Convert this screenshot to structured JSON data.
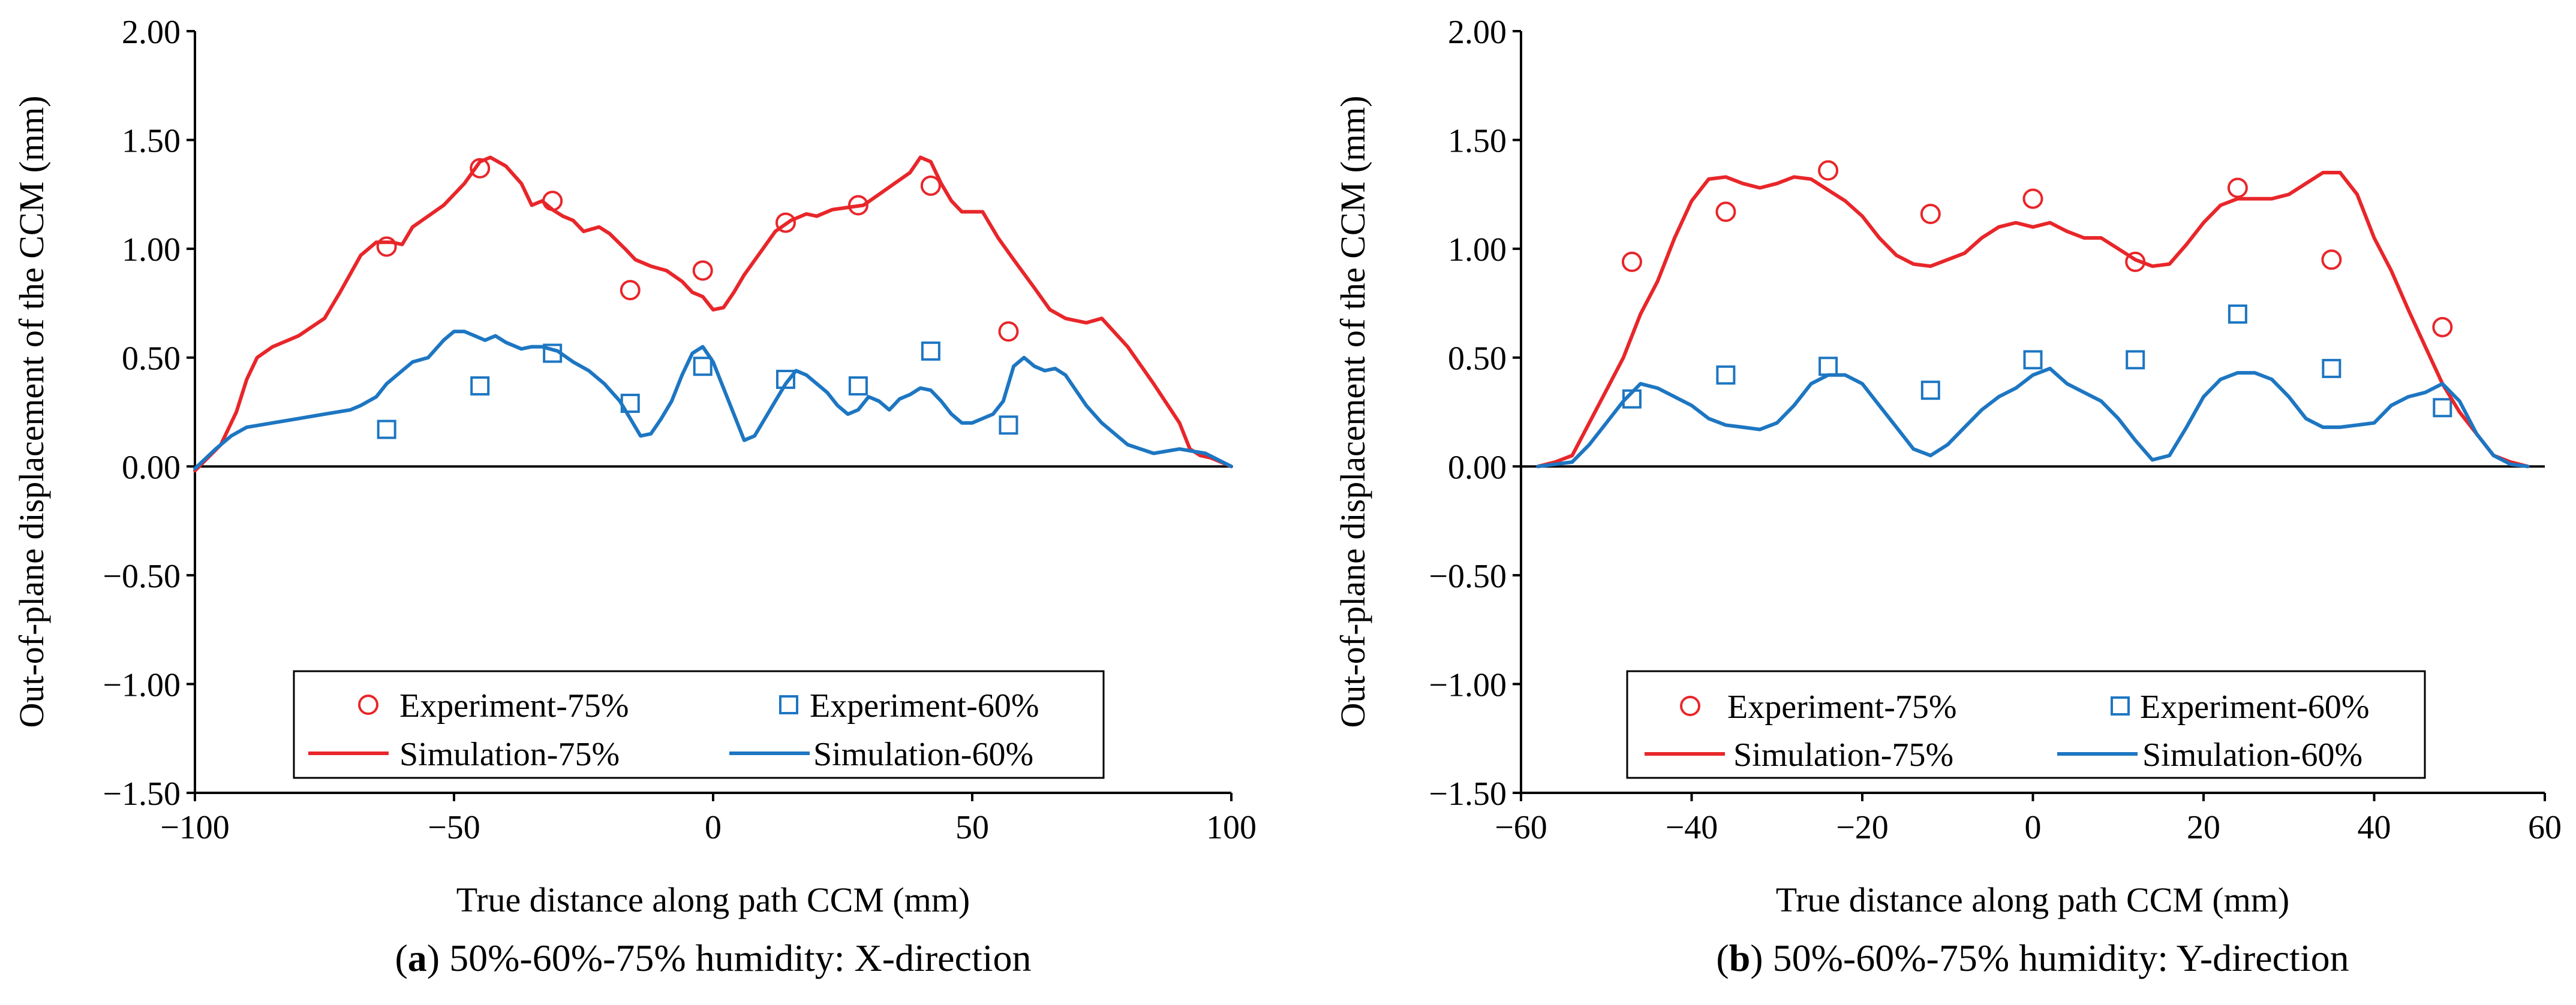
{
  "colors": {
    "red": "#e8262a",
    "blue": "#1d76c2",
    "axis": "#000000"
  },
  "chart_data": [
    {
      "id": "a",
      "type": "line",
      "panel_label": "a",
      "caption": "50%-60%-75% humidity: X-direction",
      "xlabel": "True distance along path CCM (mm)",
      "ylabel": "Out-of-plane displacement of the CCM (mm)",
      "xlim": [
        -100,
        100
      ],
      "ylim": [
        -1.5,
        2.0
      ],
      "xticks": [
        -100,
        -50,
        0,
        50,
        100
      ],
      "xtick_labels": [
        "−100",
        "−50",
        "0",
        "50",
        "100"
      ],
      "yticks": [
        -1.5,
        -1.0,
        -0.5,
        0.0,
        0.5,
        1.0,
        1.5,
        2.0
      ],
      "ytick_labels": [
        "−1.50",
        "−1.00",
        "−0.50",
        "0.00",
        "0.50",
        "1.00",
        "1.50",
        "2.00"
      ],
      "legend": {
        "exp75": "Experiment-75%",
        "exp60": "Experiment-60%",
        "sim75": "Simulation-75%",
        "sim60": "Simulation-60%"
      },
      "series": [
        {
          "name": "Experiment-75%",
          "kind": "scatter",
          "marker": "circle",
          "color": "#e8262a",
          "x": [
            -63,
            -45,
            -31,
            -16,
            -2,
            14,
            28,
            42,
            57
          ],
          "y": [
            1.01,
            1.37,
            1.22,
            0.81,
            0.9,
            1.12,
            1.2,
            1.29,
            0.62
          ]
        },
        {
          "name": "Experiment-60%",
          "kind": "scatter",
          "marker": "square",
          "color": "#1d76c2",
          "x": [
            -63,
            -45,
            -31,
            -16,
            -2,
            14,
            28,
            42,
            57
          ],
          "y": [
            0.17,
            0.37,
            0.52,
            0.29,
            0.46,
            0.4,
            0.37,
            0.53,
            0.19
          ]
        },
        {
          "name": "Simulation-75%",
          "kind": "line",
          "color": "#e8262a",
          "x": [
            -100,
            -95,
            -92,
            -90,
            -88,
            -85,
            -80,
            -75,
            -72,
            -68,
            -65,
            -62,
            -60,
            -58,
            -55,
            -52,
            -48,
            -45,
            -43,
            -40,
            -37,
            -35,
            -33,
            -31,
            -29,
            -27,
            -25,
            -22,
            -20,
            -17,
            -15,
            -12,
            -9,
            -6,
            -4,
            -2,
            0,
            2,
            4,
            6,
            9,
            12,
            15,
            18,
            20,
            23,
            26,
            29,
            32,
            35,
            38,
            40,
            42,
            44,
            46,
            48,
            52,
            55,
            58,
            62,
            65,
            68,
            70,
            72,
            75,
            80,
            85,
            90,
            92,
            94,
            96,
            98,
            100
          ],
          "y": [
            -0.02,
            0.1,
            0.25,
            0.4,
            0.5,
            0.55,
            0.6,
            0.68,
            0.8,
            0.97,
            1.03,
            1.03,
            1.02,
            1.1,
            1.15,
            1.2,
            1.3,
            1.4,
            1.42,
            1.38,
            1.3,
            1.2,
            1.22,
            1.18,
            1.15,
            1.13,
            1.08,
            1.1,
            1.07,
            1.0,
            0.95,
            0.92,
            0.9,
            0.85,
            0.8,
            0.78,
            0.72,
            0.73,
            0.8,
            0.88,
            0.98,
            1.08,
            1.13,
            1.16,
            1.15,
            1.18,
            1.19,
            1.2,
            1.25,
            1.3,
            1.35,
            1.42,
            1.4,
            1.3,
            1.22,
            1.17,
            1.17,
            1.05,
            0.95,
            0.82,
            0.72,
            0.68,
            0.67,
            0.66,
            0.68,
            0.55,
            0.38,
            0.2,
            0.08,
            0.05,
            0.04,
            0.02,
            0.0
          ]
        },
        {
          "name": "Simulation-60%",
          "kind": "line",
          "color": "#1d76c2",
          "x": [
            -100,
            -96,
            -93,
            -90,
            -85,
            -80,
            -75,
            -70,
            -68,
            -65,
            -63,
            -60,
            -58,
            -55,
            -52,
            -50,
            -48,
            -46,
            -44,
            -42,
            -40,
            -37,
            -35,
            -33,
            -30,
            -27,
            -24,
            -21,
            -18,
            -16,
            -14,
            -12,
            -10,
            -8,
            -6,
            -4,
            -2,
            0,
            2,
            4,
            6,
            8,
            10,
            12,
            14,
            16,
            18,
            20,
            22,
            24,
            26,
            28,
            30,
            32,
            34,
            36,
            38,
            40,
            42,
            44,
            46,
            48,
            50,
            52,
            54,
            56,
            58,
            60,
            62,
            64,
            66,
            68,
            70,
            72,
            75,
            80,
            85,
            90,
            95,
            100
          ],
          "y": [
            -0.01,
            0.08,
            0.14,
            0.18,
            0.2,
            0.22,
            0.24,
            0.26,
            0.28,
            0.32,
            0.38,
            0.44,
            0.48,
            0.5,
            0.58,
            0.62,
            0.62,
            0.6,
            0.58,
            0.6,
            0.57,
            0.54,
            0.55,
            0.55,
            0.53,
            0.48,
            0.44,
            0.38,
            0.3,
            0.22,
            0.14,
            0.15,
            0.22,
            0.3,
            0.42,
            0.52,
            0.55,
            0.48,
            0.36,
            0.24,
            0.12,
            0.14,
            0.22,
            0.3,
            0.38,
            0.44,
            0.42,
            0.38,
            0.34,
            0.28,
            0.24,
            0.26,
            0.32,
            0.3,
            0.26,
            0.31,
            0.33,
            0.36,
            0.35,
            0.3,
            0.24,
            0.2,
            0.2,
            0.22,
            0.24,
            0.3,
            0.46,
            0.5,
            0.46,
            0.44,
            0.45,
            0.42,
            0.35,
            0.28,
            0.2,
            0.1,
            0.06,
            0.08,
            0.06,
            0.0
          ]
        }
      ]
    },
    {
      "id": "b",
      "type": "line",
      "panel_label": "b",
      "caption": "50%-60%-75% humidity: Y-direction",
      "xlabel": "True distance along path CCM (mm)",
      "ylabel": "Out-of-plane displacement of the CCM (mm)",
      "xlim": [
        -60,
        60
      ],
      "ylim": [
        -1.5,
        2.0
      ],
      "xticks": [
        -60,
        -40,
        -20,
        0,
        20,
        40,
        60
      ],
      "xtick_labels": [
        "−60",
        "−40",
        "−20",
        "0",
        "20",
        "40",
        "60"
      ],
      "yticks": [
        -1.5,
        -1.0,
        -0.5,
        0.0,
        0.5,
        1.0,
        1.5,
        2.0
      ],
      "ytick_labels": [
        "−1.50",
        "−1.00",
        "−0.50",
        "0.00",
        "0.50",
        "1.00",
        "1.50",
        "2.00"
      ],
      "legend": {
        "exp75": "Experiment-75%",
        "exp60": "Experiment-60%",
        "sim75": "Simulation-75%",
        "sim60": "Simulation-60%"
      },
      "series": [
        {
          "name": "Experiment-75%",
          "kind": "scatter",
          "marker": "circle",
          "color": "#e8262a",
          "x": [
            -47,
            -36,
            -24,
            -12,
            0,
            12,
            24,
            35,
            48
          ],
          "y": [
            0.94,
            1.17,
            1.36,
            1.16,
            1.23,
            0.94,
            1.28,
            0.95,
            0.64
          ]
        },
        {
          "name": "Experiment-60%",
          "kind": "scatter",
          "marker": "square",
          "color": "#1d76c2",
          "x": [
            -47,
            -36,
            -24,
            -12,
            0,
            12,
            24,
            35,
            48
          ],
          "y": [
            0.31,
            0.42,
            0.46,
            0.35,
            0.49,
            0.49,
            0.7,
            0.45,
            0.27
          ]
        },
        {
          "name": "Simulation-75%",
          "kind": "line",
          "color": "#e8262a",
          "x": [
            -58,
            -56,
            -54,
            -52,
            -50,
            -48,
            -46,
            -44,
            -42,
            -40,
            -38,
            -36,
            -34,
            -32,
            -30,
            -28,
            -26,
            -24,
            -22,
            -20,
            -18,
            -16,
            -14,
            -12,
            -10,
            -8,
            -6,
            -4,
            -2,
            0,
            2,
            4,
            6,
            8,
            10,
            12,
            14,
            16,
            18,
            20,
            22,
            24,
            26,
            28,
            30,
            32,
            34,
            36,
            38,
            40,
            42,
            44,
            46,
            48,
            50,
            52,
            54,
            56,
            58
          ],
          "y": [
            0.0,
            0.02,
            0.05,
            0.2,
            0.35,
            0.5,
            0.7,
            0.85,
            1.05,
            1.22,
            1.32,
            1.33,
            1.3,
            1.28,
            1.3,
            1.33,
            1.32,
            1.27,
            1.22,
            1.15,
            1.05,
            0.97,
            0.93,
            0.92,
            0.95,
            0.98,
            1.05,
            1.1,
            1.12,
            1.1,
            1.12,
            1.08,
            1.05,
            1.05,
            1.0,
            0.95,
            0.92,
            0.93,
            1.02,
            1.12,
            1.2,
            1.23,
            1.23,
            1.23,
            1.25,
            1.3,
            1.35,
            1.35,
            1.25,
            1.05,
            0.9,
            0.72,
            0.55,
            0.38,
            0.25,
            0.15,
            0.05,
            0.02,
            0.0
          ]
        },
        {
          "name": "Simulation-60%",
          "kind": "line",
          "color": "#1d76c2",
          "x": [
            -58,
            -56,
            -54,
            -52,
            -50,
            -48,
            -46,
            -44,
            -42,
            -40,
            -38,
            -36,
            -34,
            -32,
            -30,
            -28,
            -26,
            -24,
            -22,
            -20,
            -18,
            -16,
            -14,
            -12,
            -10,
            -8,
            -6,
            -4,
            -2,
            0,
            2,
            4,
            6,
            8,
            10,
            12,
            14,
            16,
            18,
            20,
            22,
            24,
            26,
            28,
            30,
            32,
            34,
            36,
            38,
            40,
            42,
            44,
            46,
            48,
            50,
            52,
            54,
            56,
            58
          ],
          "y": [
            0.0,
            0.01,
            0.02,
            0.1,
            0.2,
            0.3,
            0.38,
            0.36,
            0.32,
            0.28,
            0.22,
            0.19,
            0.18,
            0.17,
            0.2,
            0.28,
            0.38,
            0.42,
            0.42,
            0.38,
            0.28,
            0.18,
            0.08,
            0.05,
            0.1,
            0.18,
            0.26,
            0.32,
            0.36,
            0.42,
            0.45,
            0.38,
            0.34,
            0.3,
            0.22,
            0.12,
            0.03,
            0.05,
            0.18,
            0.32,
            0.4,
            0.43,
            0.43,
            0.4,
            0.32,
            0.22,
            0.18,
            0.18,
            0.19,
            0.2,
            0.28,
            0.32,
            0.34,
            0.38,
            0.3,
            0.15,
            0.05,
            0.01,
            0.0
          ]
        }
      ]
    }
  ]
}
